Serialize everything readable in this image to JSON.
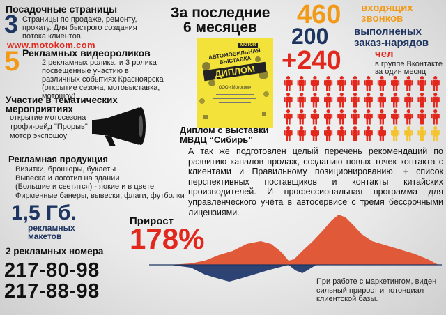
{
  "landing": {
    "title": "Посадочные страницы",
    "number": "3",
    "text": "Страницы по продаже, ремонту, прокату. Для быстрого создания потока клиентов.",
    "site": "www.motokom.com"
  },
  "videos": {
    "number": "5",
    "title": "Рекламных видеороликов",
    "text": "2 рекламных ролика, и 3 ролика посвещенные участию в различных событиях Красноярска (открытие сезона, мотовыставка, мотошоу)"
  },
  "events": {
    "title": "Участие в тематических мероприятиях",
    "items": [
      "открытие мотосезона",
      "трофи-рейд \"Прорыв\"",
      "мотор экспошоу"
    ]
  },
  "print": {
    "title": "Рекламная продукция",
    "items": [
      "Визитки, брошюры, буклеты",
      "Вывеска и логотип на здании",
      "(Большие и светятся) - яокие и в цвете",
      "Фирменные банеры, вывески, флаги, футболки"
    ]
  },
  "materials": {
    "size": "1,5 Гб.",
    "label1": "рекламных",
    "label2": "макетов"
  },
  "phones": {
    "title": "2 рекламных номера",
    "numbers": [
      "217-80-98",
      "217-88-98"
    ]
  },
  "period": {
    "line1": "За последние",
    "line2": "6 месяцев"
  },
  "diploma": {
    "caption1": "Диплом с выставки",
    "caption2": "МВДЦ “Сибирь”",
    "badge": "MOTOR",
    "text1": "АВТОМОБИЛЬНАЯ",
    "text2": "ВЫСТАВКА",
    "title": "ДИПЛОМ",
    "org": "ООО «Мотоком»"
  },
  "calls": {
    "number": "460",
    "label1": "входящих",
    "label2": "звонков"
  },
  "orders": {
    "number": "200",
    "label1": "выполненых",
    "label2": "заказ-нарядов"
  },
  "vk": {
    "number": "+240",
    "label1": "чел",
    "label2": "в группе Вконтакте",
    "label3": "за один месяц"
  },
  "people": {
    "rows": 4,
    "cols": 12,
    "highlight_last_row_from": 8,
    "red": "#e2271c",
    "yellow": "#f4c430"
  },
  "recommend": "А так же подготовлен целый перечень рекомендаций по развитию каналов продаж, созданию новых точек контакта с клиентами и Правильному позиционированию. + список перспективных поставщиков и контакты китайских производителей. И профессиональная программа для управленческого учёта в автосервисе с тремя бессрочными лицензиями.",
  "growth": {
    "title": "Прирост",
    "value": "178%",
    "note": "При работе с маркетингом, виден сильный прирост и потонциал клиентской базы."
  },
  "colors": {
    "navy": "#1d3560",
    "orange": "#f29a17",
    "red": "#e2271c",
    "area_pos": "#e05a3a",
    "area_neg": "#2c4373"
  }
}
